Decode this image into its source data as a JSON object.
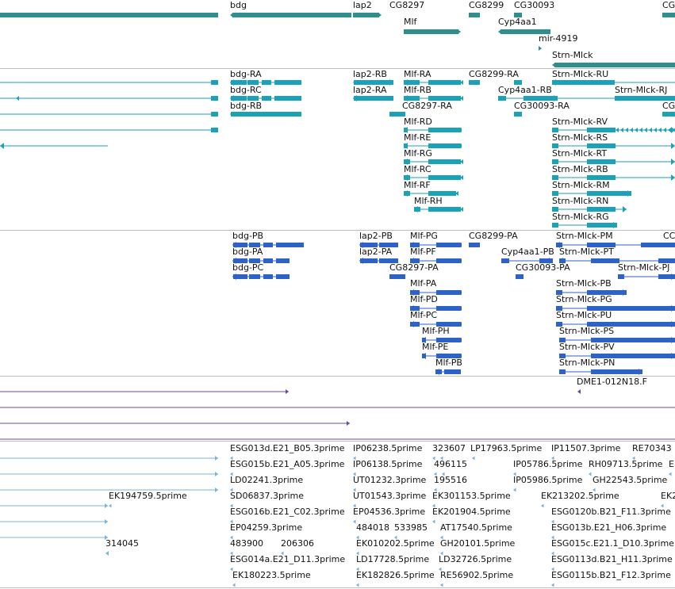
{
  "colors": {
    "gene": "#2f8f8f",
    "mrna_flybase": "#1aa2b8",
    "mrna_ref": "#2f62c6",
    "clone": "#6a4aa5",
    "est": "#78b4de",
    "separator": "#bdbdbd"
  },
  "tracks": {
    "genes": [
      "bdg",
      "lap2",
      "CG8297",
      "CG8299",
      "CG30093",
      "CG",
      "Mlf",
      "Cyp4aa1",
      "mir-4919",
      "Strn-Mlck"
    ],
    "transcripts_a": [
      "bdg-RA",
      "lap2-RB",
      "Mlf-RA",
      "CG8299-RA",
      "Strn-Mlck-RU",
      "bdg-RC",
      "lap2-RA",
      "Mlf-RB",
      "Cyp4aa1-RB",
      "Strn-Mlck-RJ",
      "bdg-RB",
      "CG8297-RA",
      "CG30093-RA",
      "CG",
      "Mlf-RD",
      "Strn-Mlck-RV",
      "Mlf-RE",
      "Strn-Mlck-RS",
      "Mlf-RG",
      "Strn-Mlck-RT",
      "Mlf-RC",
      "Strn-Mlck-RB",
      "Mlf-RF",
      "Strn-Mlck-RM",
      "Mlf-RH",
      "Strn-Mlck-RN",
      "Strn-Mlck-RG"
    ],
    "transcripts_b": [
      "bdg-PB",
      "lap2-PB",
      "Mlf-PG",
      "CG8299-PA",
      "Strn-Mlck-PM",
      "CC",
      "bdg-PA",
      "lap2-PA",
      "Mlf-PF",
      "Cyp4aa1-PB",
      "Strn-Mlck-PT",
      "bdg-PC",
      "CG8297-PA",
      "CG30093-PA",
      "Strn-Mlck-PJ",
      "Mlf-PA",
      "Strn-Mlck-PB",
      "Mlf-PD",
      "Strn-Mlck-PG",
      "Mlf-PC",
      "Strn-Mlck-PU",
      "Mlf-PH",
      "Strn-Mlck-PS",
      "Mlf-PE",
      "Strn-Mlck-PV",
      "Mlf-PB",
      "Strn-Mlck-PN"
    ],
    "clones": [
      "DME1-012N18.F"
    ],
    "ests": [
      "ESG013d.E21_B05.3prime",
      "IP06238.5prime",
      "323607",
      "LP17963.5prime",
      "IP11507.3prime",
      "RE70343",
      "ESG015b.E21_A05.3prime",
      "IP06138.5prime",
      "496115",
      "IP05786.5prime",
      "RH09713.5prime",
      "E",
      "LD02241.3prime",
      "UT01232.3prime",
      "195516",
      "IP05986.5prime",
      "GH22543.5prime",
      "EK194759.5prime",
      "SD06837.3prime",
      "UT01543.3prime",
      "EK301153.5prime",
      "EK213202.5prime",
      "EK2",
      "ESG016b.E21_C02.3prime",
      "EP04536.3prime",
      "EK201904.5prime",
      "ESG0120b.B21_F11.3prime",
      "EP04259.3prime",
      "484018",
      "533985",
      "AT17540.5prime",
      "ESG013b.E21_H06.3prime",
      "314045",
      "483900",
      "206306",
      "EK010202.5prime",
      "GH20101.5prime",
      "ESG015c.E21.1_D10.3prime",
      "ESG014a.E21_D11.3prime",
      "LD17728.5prime",
      "LD32726.5prime",
      "ESG0113d.B21_H11.3prime",
      "EK180223.5prime",
      "EK182826.5prime",
      "RE56902.5prime",
      "ESG0115b.B21_F12.3prime"
    ]
  }
}
